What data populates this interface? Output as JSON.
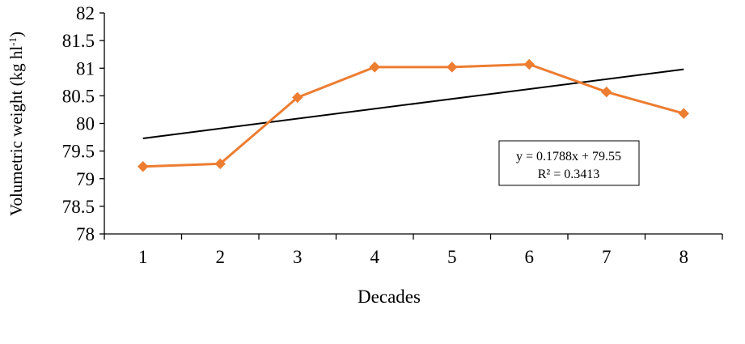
{
  "chart_data": {
    "type": "line",
    "title": "",
    "xlabel": "Decades",
    "ylabel": "Volumetric weight (kg hl",
    "ylabel_sup": "-1",
    "ylabel_close": ")",
    "categories": [
      "1",
      "2",
      "3",
      "4",
      "5",
      "6",
      "7",
      "8"
    ],
    "series": [
      {
        "values": [
          79.22,
          79.27,
          80.47,
          81.02,
          81.02,
          81.07,
          80.57,
          80.18
        ],
        "color": "#ED7D31",
        "marker": "diamond"
      }
    ],
    "trendline": {
      "type": "linear",
      "slope": 0.1788,
      "intercept": 79.55,
      "color": "#000000",
      "equation": "y = 0.1788x + 79.55",
      "r2_label": "R² = 0.3413"
    },
    "ylim": [
      78,
      82
    ],
    "ytick_labels": [
      "78",
      "78.5",
      "79",
      "79.5",
      "80",
      "80.5",
      "81",
      "81.5",
      "82"
    ],
    "grid": false,
    "legend": "none"
  }
}
